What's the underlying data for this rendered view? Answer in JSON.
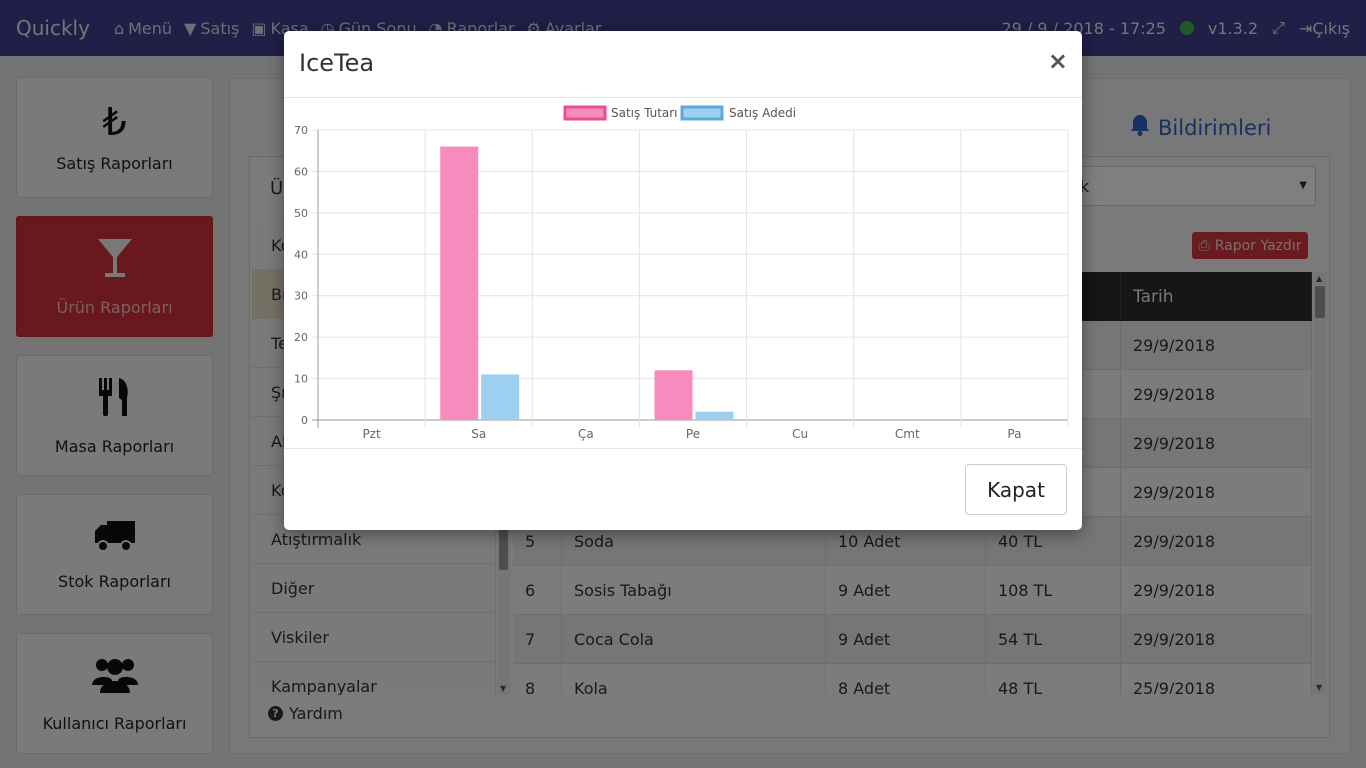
{
  "navbar": {
    "brand": "Quickly",
    "items": [
      {
        "label": "Menü",
        "icon": "home-icon"
      },
      {
        "label": "Satış",
        "icon": "filter-icon"
      },
      {
        "label": "Kasa",
        "icon": "money-icon"
      },
      {
        "label": "Gün Sonu",
        "icon": "clock-icon"
      },
      {
        "label": "Raporlar",
        "icon": "pie-chart-icon"
      },
      {
        "label": "Ayarlar",
        "icon": "gears-icon"
      }
    ],
    "datetime": "29 / 9 / 2018 - 17:25",
    "status_color": "#3bb54a",
    "version": "v1.3.2",
    "logout": "Çıkış"
  },
  "sidebar": {
    "items": [
      {
        "label": "Satış Raporları",
        "icon": "lira-icon",
        "glyph": "₺"
      },
      {
        "label": "Ürün Raporları",
        "icon": "cocktail-glass-icon",
        "glyph": "🍸",
        "active": true
      },
      {
        "label": "Masa Raporları",
        "icon": "cutlery-icon",
        "glyph": "🍴"
      },
      {
        "label": "Stok Raporları",
        "icon": "truck-icon",
        "glyph": "🚚"
      },
      {
        "label": "Kullanıcı Raporları",
        "icon": "users-icon",
        "glyph": "👥"
      }
    ]
  },
  "main": {
    "notifications": "Bildirimleri",
    "panel_title": "Ür",
    "select_value": "lık",
    "print_button": "Rapor Yazdır",
    "categories": [
      "Ko",
      "Bı",
      "Te",
      "Şı",
      "Al",
      "Ko",
      "Atıştırmalık",
      "Diğer",
      "Viskiler",
      "Kampanyalar"
    ],
    "selected_category_index": 1,
    "table": {
      "header_last": "Tarih",
      "rows": [
        {
          "no": "",
          "name": "",
          "qty": "",
          "amount": "",
          "date": "29/9/2018"
        },
        {
          "no": "",
          "name": "",
          "qty": "",
          "amount": "",
          "date": "29/9/2018"
        },
        {
          "no": "",
          "name": "",
          "qty": "",
          "amount": "",
          "date": "29/9/2018"
        },
        {
          "no": "",
          "name": "",
          "qty": "",
          "amount": "",
          "date": "29/9/2018"
        },
        {
          "no": "5",
          "name": "Soda",
          "qty": "10 Adet",
          "amount": "40 TL",
          "date": "29/9/2018"
        },
        {
          "no": "6",
          "name": "Sosis Tabağı",
          "qty": "9 Adet",
          "amount": "108 TL",
          "date": "29/9/2018"
        },
        {
          "no": "7",
          "name": "Coca Cola",
          "qty": "9 Adet",
          "amount": "54 TL",
          "date": "29/9/2018"
        },
        {
          "no": "8",
          "name": "Kola",
          "qty": "8 Adet",
          "amount": "48 TL",
          "date": "25/9/2018"
        }
      ]
    },
    "help": "Yardım"
  },
  "modal": {
    "title": "IceTea",
    "close_x": "×",
    "close_button": "Kapat"
  },
  "chart_data": {
    "type": "bar",
    "categories": [
      "Pzt",
      "Sa",
      "Ça",
      "Pe",
      "Cu",
      "Cmt",
      "Pa"
    ],
    "series": [
      {
        "name": "Satış Tutarı",
        "color": "#f78bbd",
        "border": "#e8508f",
        "values": [
          0,
          66,
          0,
          12,
          0,
          0,
          0
        ]
      },
      {
        "name": "Satış Adedi",
        "color": "#9ccff0",
        "border": "#5fa8dc",
        "values": [
          0,
          11,
          0,
          2,
          0,
          0,
          0
        ]
      }
    ],
    "ylim": [
      0,
      70
    ],
    "yticks": [
      0,
      10,
      20,
      30,
      40,
      50,
      60,
      70
    ],
    "legend": "top",
    "grid": true
  }
}
